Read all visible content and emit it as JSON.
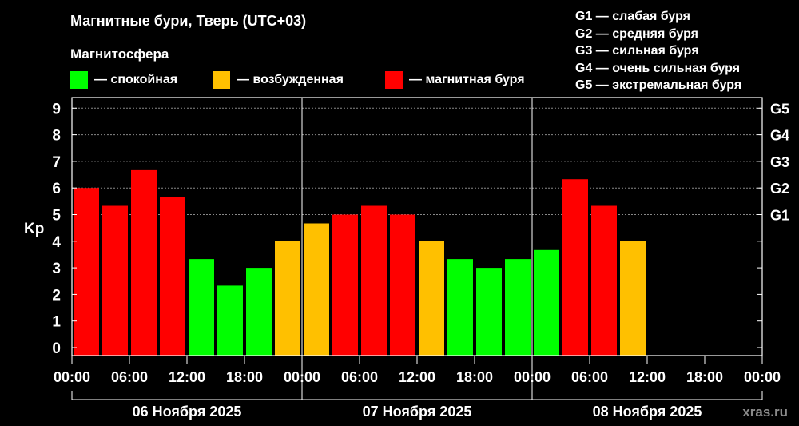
{
  "title": "Магнитные бури, Тверь (UTC+03)",
  "legend_title": "Магнитосфера",
  "legend": [
    {
      "label": "— спокойная",
      "color": "#00ff00"
    },
    {
      "label": "— возбужденная",
      "color": "#ffc000"
    },
    {
      "label": "— магнитная буря",
      "color": "#ff0000"
    }
  ],
  "g_scale_legend": [
    "G1 — слабая буря",
    "G2 — средняя буря",
    "G3 — сильная буря",
    "G4 — очень сильная буря",
    "G5 — экстремальная буря"
  ],
  "watermark": "xras.ru",
  "chart_data": {
    "type": "bar",
    "ylabel": "Kp",
    "ylim": [
      -0.3,
      9.4
    ],
    "yticks": [
      "0",
      "1",
      "2",
      "3",
      "4",
      "5",
      "6",
      "7",
      "8",
      "9"
    ],
    "right_ticks": [
      {
        "label": "G1",
        "value": 5
      },
      {
        "label": "G2",
        "value": 6
      },
      {
        "label": "G3",
        "value": 7
      },
      {
        "label": "G4",
        "value": 8
      },
      {
        "label": "G5",
        "value": 9
      }
    ],
    "xtick_labels": [
      "00:00",
      "06:00",
      "12:00",
      "18:00",
      "00:00",
      "06:00",
      "12:00",
      "18:00",
      "00:00",
      "06:00",
      "12:00",
      "18:00",
      "00:00"
    ],
    "days": [
      "06 Ноября 2025",
      "07 Ноября 2025",
      "08 Ноября 2025"
    ],
    "interval_hours": 3,
    "values": [
      6.0,
      5.33,
      6.67,
      5.67,
      3.33,
      2.33,
      3.0,
      4.0,
      4.67,
      5.0,
      5.33,
      5.0,
      4.0,
      3.33,
      3.0,
      3.33,
      3.67,
      6.33,
      5.33,
      4.0
    ],
    "colors": {
      "quiet": "#00ff00",
      "active": "#ffc000",
      "storm": "#ff0000"
    },
    "grid": true
  }
}
